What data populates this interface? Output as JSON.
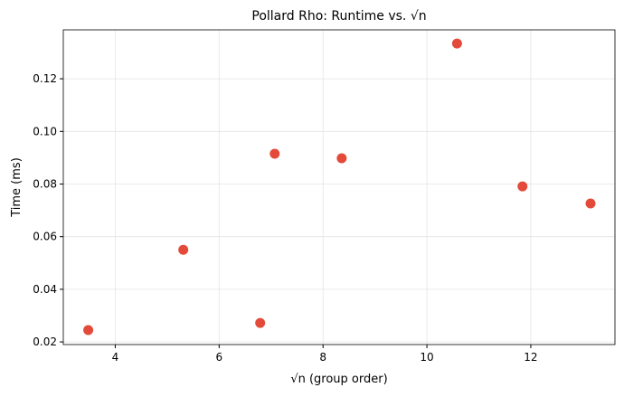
{
  "chart_data": {
    "type": "scatter",
    "title": "Pollard Rho: Runtime vs. √n",
    "xlabel": "√n  (group order)",
    "ylabel": "Time (ms)",
    "series": [
      {
        "color": "#e34a3a",
        "x": [
          3.48,
          5.31,
          6.79,
          7.07,
          8.36,
          10.58,
          11.84,
          13.15
        ],
        "values": [
          0.0245,
          0.055,
          0.0272,
          0.0915,
          0.0898,
          0.1334,
          0.0791,
          0.0726
        ]
      }
    ],
    "xlim": [
      3.0,
      13.62
    ],
    "ylim": [
      0.019,
      0.1386
    ],
    "xticks": [
      4,
      6,
      8,
      10,
      12
    ],
    "yticks": [
      {
        "value": 0.02,
        "label": "0.02"
      },
      {
        "value": 0.04,
        "label": "0.04"
      },
      {
        "value": 0.06,
        "label": "0.06"
      },
      {
        "value": 0.08,
        "label": "0.08"
      },
      {
        "value": 0.1,
        "label": "0.10"
      },
      {
        "value": 0.12,
        "label": "0.12"
      }
    ],
    "grid": true
  }
}
